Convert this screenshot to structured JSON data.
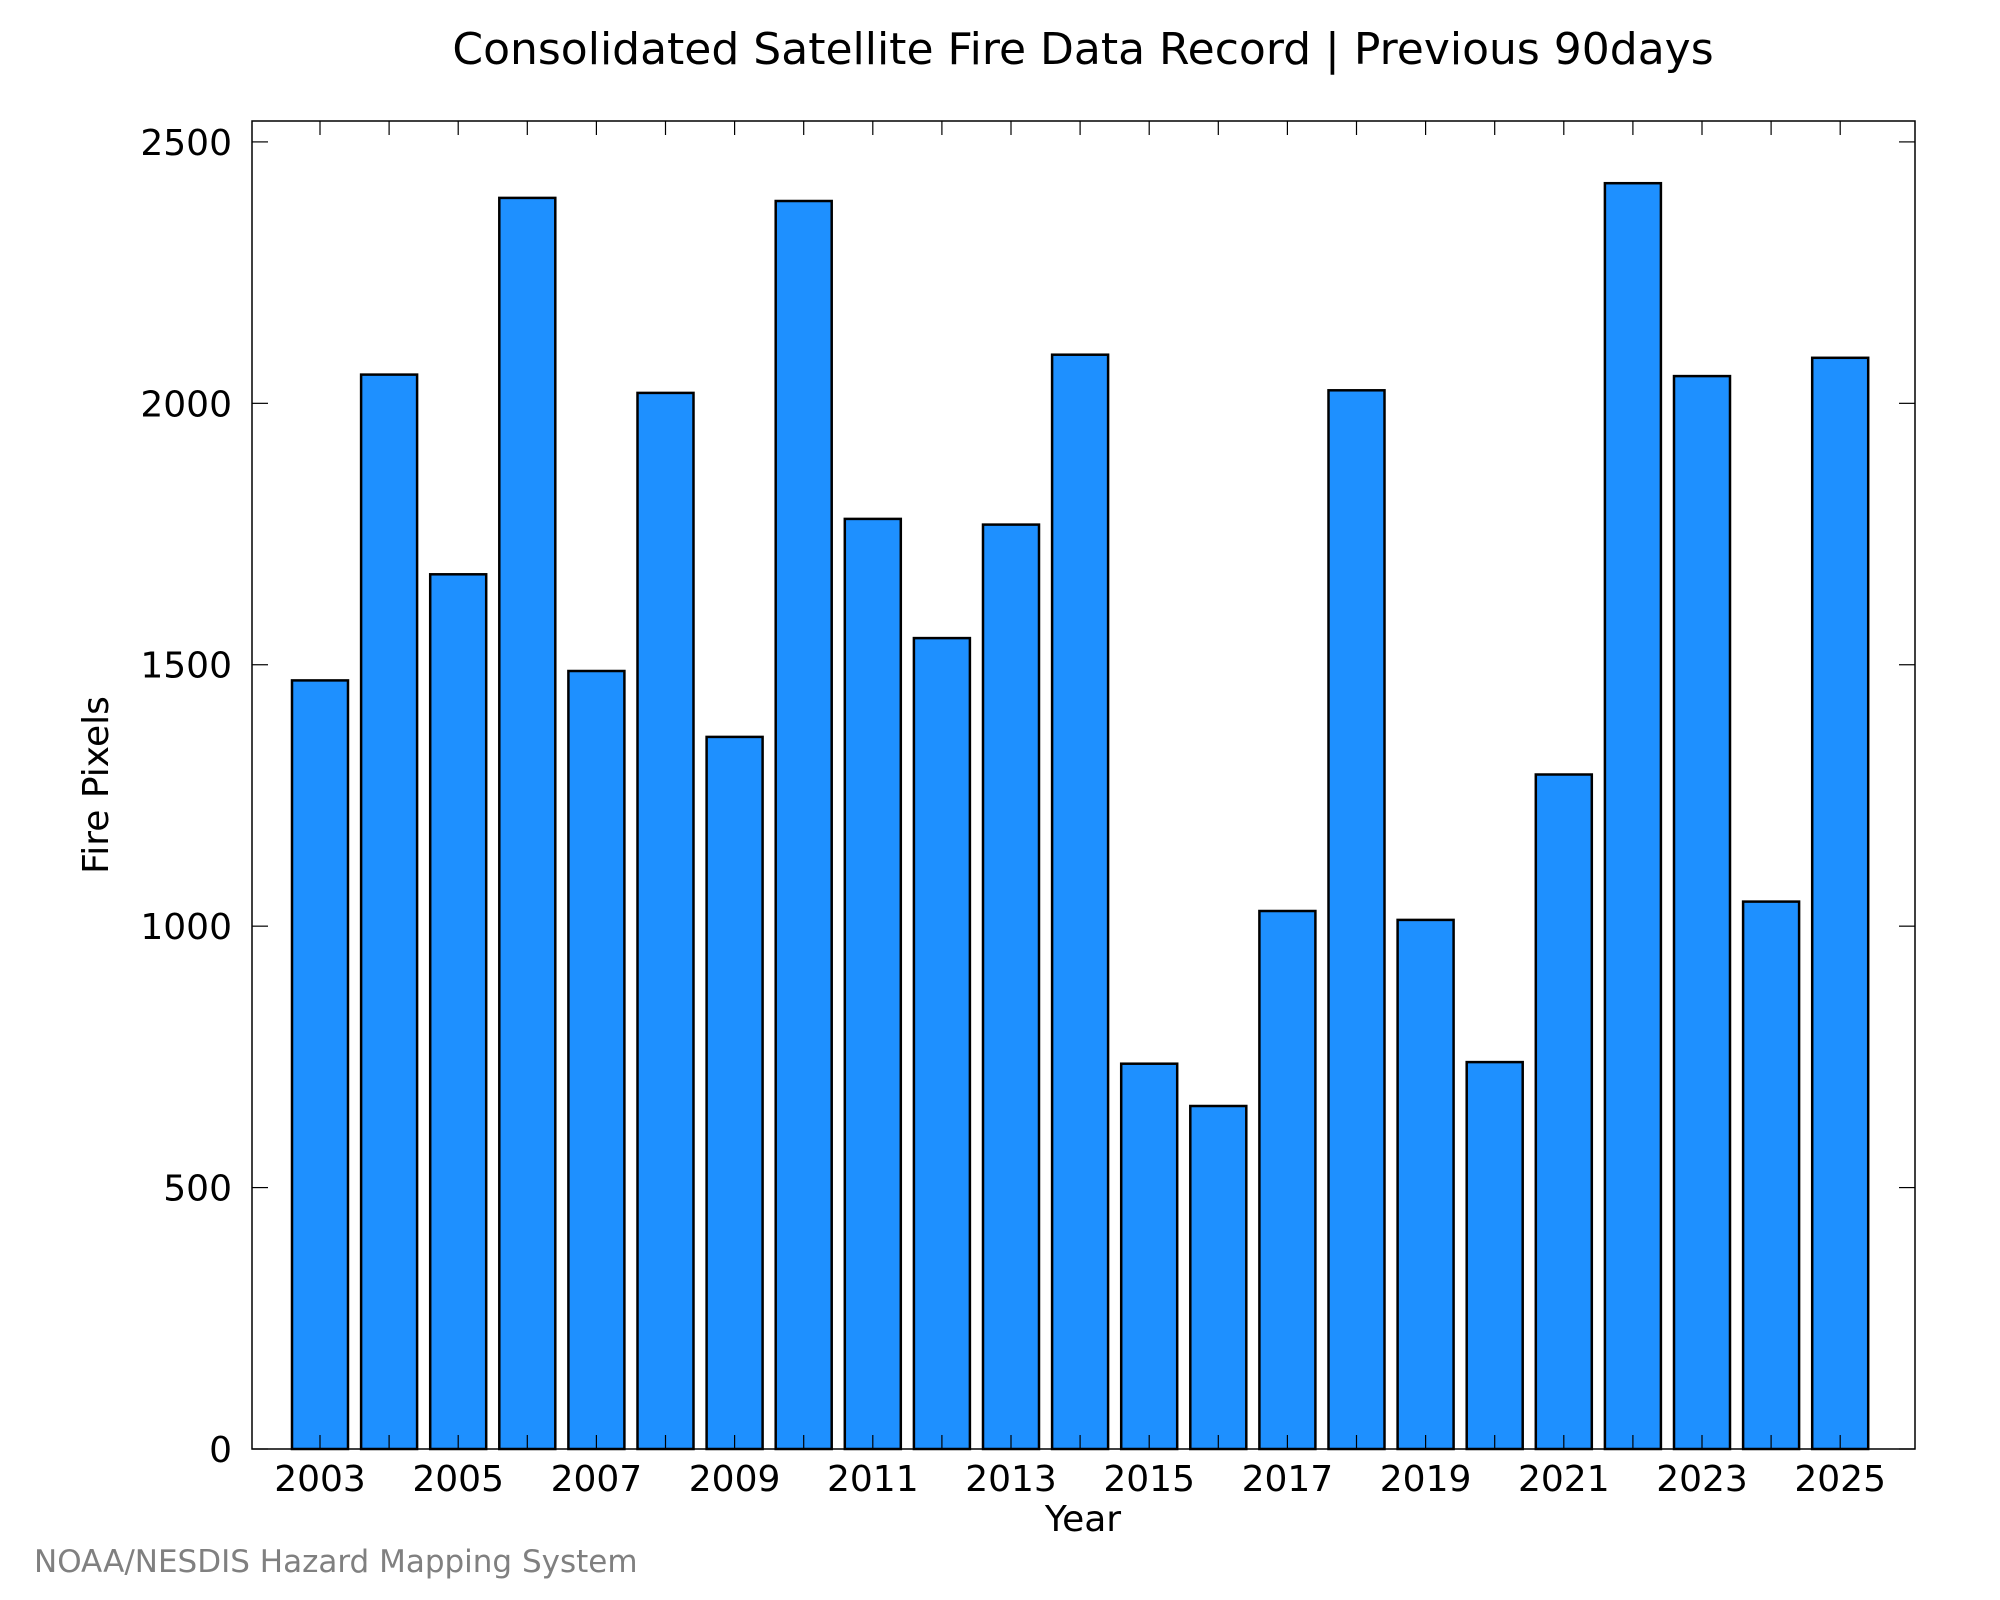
{
  "chart_data": {
    "type": "bar",
    "title": "Consolidated Satellite Fire Data Record | Previous 90days",
    "xlabel": "Year",
    "ylabel": "Fire Pixels",
    "categories": [
      "2003",
      "2004",
      "2005",
      "2006",
      "2007",
      "2008",
      "2009",
      "2010",
      "2011",
      "2012",
      "2013",
      "2014",
      "2015",
      "2016",
      "2017",
      "2018",
      "2019",
      "2020",
      "2021",
      "2022",
      "2023",
      "2024",
      "2025"
    ],
    "x_tick_labels": [
      "2003",
      "2005",
      "2007",
      "2009",
      "2011",
      "2013",
      "2015",
      "2017",
      "2019",
      "2021",
      "2023",
      "2025"
    ],
    "values": [
      1470,
      2055,
      1673,
      2393,
      1488,
      2020,
      1362,
      2387,
      1779,
      1551,
      1768,
      2093,
      737,
      656,
      1029,
      2025,
      1012,
      740,
      1290,
      2421,
      2052,
      1047,
      2087
    ],
    "ylim": [
      0,
      2540
    ],
    "y_ticks": [
      0,
      500,
      1000,
      1500,
      2000,
      2500
    ],
    "bar_color": "#1e90ff",
    "bar_edge_color": "#000000",
    "grid": false,
    "legend": "none"
  },
  "credit": "NOAA/NESDIS Hazard Mapping System"
}
